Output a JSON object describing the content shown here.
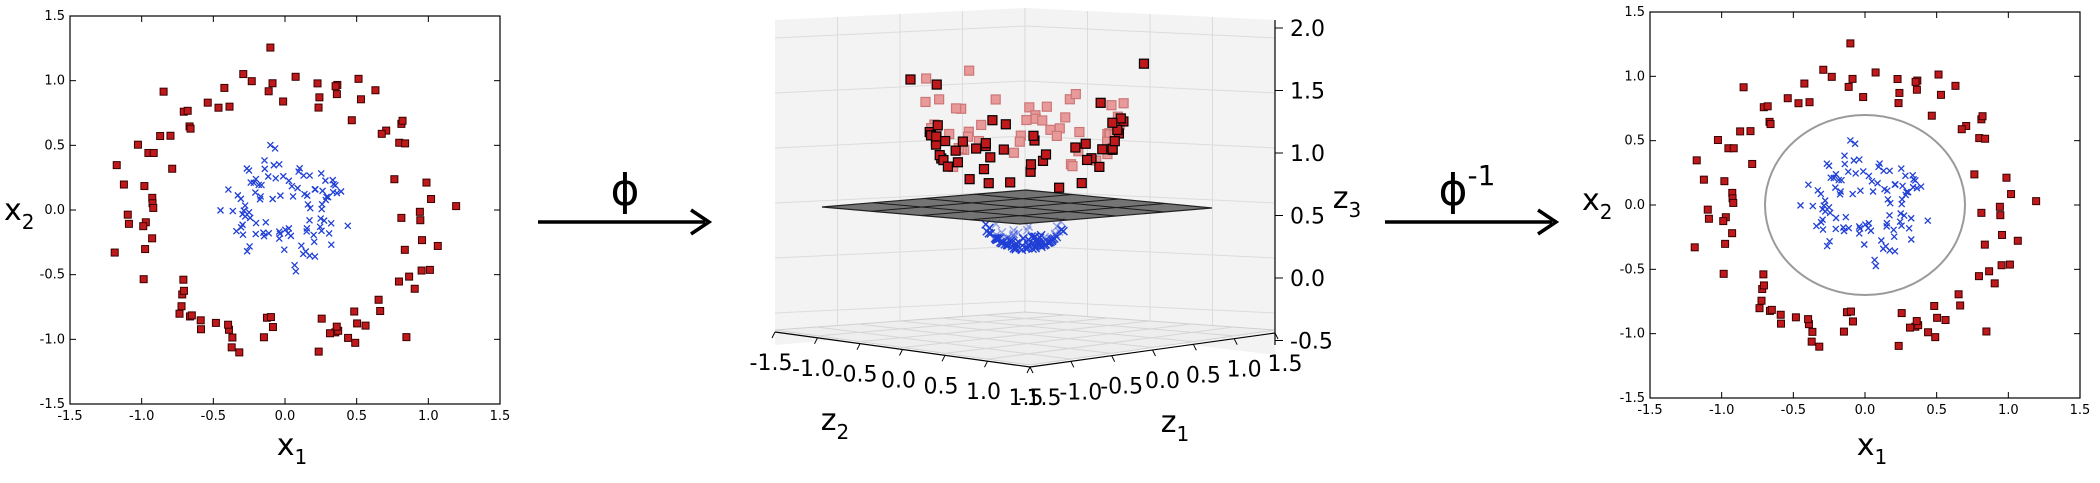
{
  "left_plot": {
    "xlabel": "x",
    "xlabel_sub": "1",
    "ylabel": "x",
    "ylabel_sub": "2",
    "x_ticks": [
      "-1.5",
      "-1.0",
      "-0.5",
      "0.0",
      "0.5",
      "1.0",
      "1.5"
    ],
    "y_ticks": [
      "1.5",
      "1.0",
      "0.5",
      "0.0",
      "-0.5",
      "-1.0",
      "-1.5"
    ]
  },
  "arrow1": {
    "label": "ϕ"
  },
  "middle_plot": {
    "z1_label": "z",
    "z1_sub": "1",
    "z2_label": "z",
    "z2_sub": "2",
    "z3_label": "z",
    "z3_sub": "3",
    "z2_ticks": [
      "-1.5",
      "-1.0",
      "-0.5",
      "0.0",
      "0.5",
      "1.0",
      "1.5"
    ],
    "z1_ticks": [
      "-1.5",
      "-1.0",
      "-0.5",
      "0.0",
      "0.5",
      "1.0",
      "1.5"
    ],
    "z3_ticks": [
      "2.0",
      "1.5",
      "1.0",
      "0.5",
      "0.0",
      "-0.5"
    ]
  },
  "arrow2": {
    "label": "ϕ",
    "superscript": "-1"
  },
  "right_plot": {
    "xlabel": "x",
    "xlabel_sub": "1",
    "ylabel": "x",
    "ylabel_sub": "2",
    "x_ticks": [
      "-1.5",
      "-1.0",
      "-0.5",
      "0.0",
      "0.5",
      "1.0",
      "1.5"
    ],
    "y_ticks": [
      "1.5",
      "1.0",
      "0.5",
      "0.0",
      "-0.5",
      "-1.0",
      "-1.5"
    ]
  },
  "colors": {
    "outer_class": "#c0191c",
    "inner_class": "#1f3fd6",
    "plane": "#4a4a4a",
    "boundary_circle": "#9a9a9a"
  },
  "chart_data": [
    {
      "type": "scatter",
      "xlim": [
        -1.5,
        1.5
      ],
      "ylim": [
        -1.5,
        1.5
      ],
      "grid": false,
      "series": [
        {
          "marker": "square",
          "color": "#c0191c",
          "points": []
        },
        {
          "marker": "x",
          "color": "#1f3fd6",
          "points": []
        }
      ]
    },
    {
      "type": "scatter",
      "projection": "3d",
      "z3lim": [
        -0.5,
        2.0
      ],
      "separating_plane_z3": 0.5,
      "series": [
        {
          "marker": "square",
          "color": "#c0191c",
          "points": []
        },
        {
          "marker": "x",
          "color": "#1f3fd6",
          "points": []
        }
      ]
    },
    {
      "type": "scatter",
      "xlim": [
        -1.5,
        1.5
      ],
      "ylim": [
        -1.5,
        1.5
      ],
      "grid": false,
      "decision_boundary": {
        "shape": "circle",
        "center": [
          0.0,
          0.0
        ],
        "radius": 0.7
      },
      "series": [
        {
          "marker": "square",
          "color": "#c0191c",
          "points": []
        },
        {
          "marker": "x",
          "color": "#1f3fd6",
          "points": []
        }
      ]
    }
  ]
}
